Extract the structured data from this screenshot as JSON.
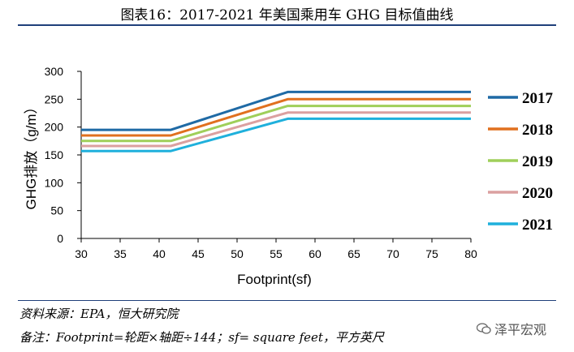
{
  "header": {
    "title": "图表16：2017-2021 年美国乘用车 GHG 目标值曲线"
  },
  "footer": {
    "source": "资料来源：EPA，恒大研究院",
    "remark": "备注：Footprint=轮距×轴距÷144；sf= square feet，平方英尺",
    "watermark": "泽平宏观"
  },
  "chart_data": {
    "type": "line",
    "xlabel": "Footprint(sf)",
    "ylabel": "GHG排放（g/m）",
    "xlim": [
      30,
      80
    ],
    "ylim": [
      0,
      300
    ],
    "xticks": [
      30,
      35,
      40,
      45,
      50,
      55,
      60,
      65,
      70,
      75,
      80
    ],
    "yticks": [
      0,
      50,
      100,
      150,
      200,
      250,
      300
    ],
    "grid": false,
    "legend_position": "right",
    "series": [
      {
        "name": "2017",
        "color": "#1f6aa5",
        "x": [
          30,
          41.5,
          56.5,
          80
        ],
        "y": [
          195,
          195,
          263,
          263
        ]
      },
      {
        "name": "2018",
        "color": "#e0701f",
        "x": [
          30,
          41.5,
          56.5,
          80
        ],
        "y": [
          185,
          185,
          250,
          250
        ]
      },
      {
        "name": "2019",
        "color": "#9fcf5a",
        "x": [
          30,
          41.5,
          56.5,
          80
        ],
        "y": [
          175,
          175,
          238,
          238
        ]
      },
      {
        "name": "2020",
        "color": "#dba0a0",
        "x": [
          30,
          41.5,
          56.5,
          80
        ],
        "y": [
          166,
          166,
          226,
          226
        ]
      },
      {
        "name": "2021",
        "color": "#1fb0dc",
        "x": [
          30,
          41.5,
          56.5,
          80
        ],
        "y": [
          157,
          157,
          215,
          215
        ]
      }
    ]
  }
}
